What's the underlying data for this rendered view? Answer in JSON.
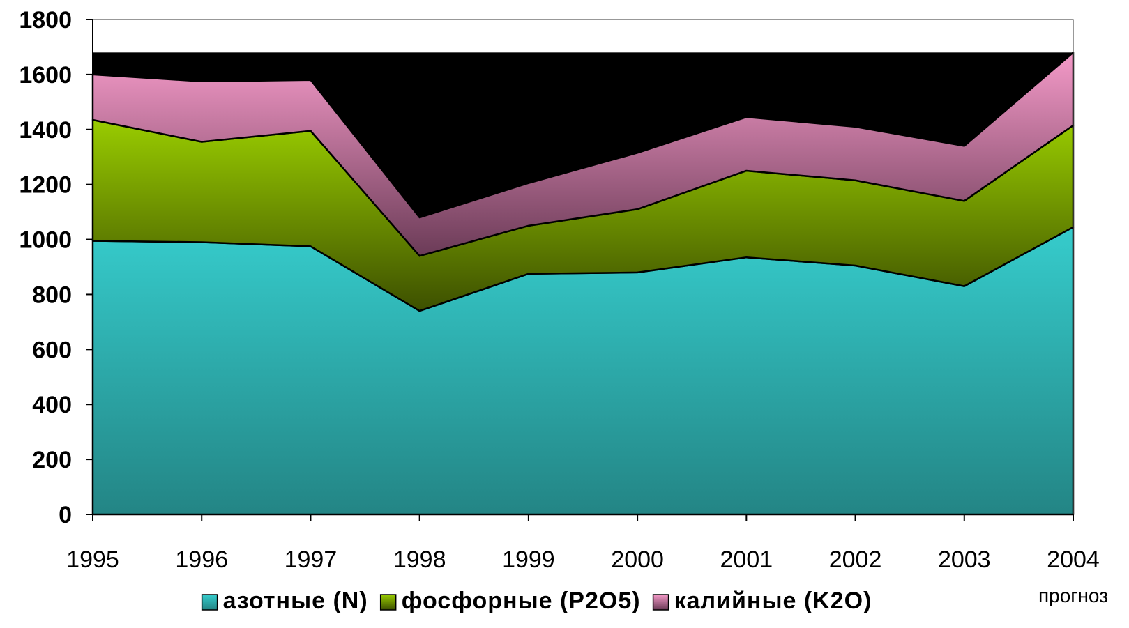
{
  "chart_data": {
    "type": "area",
    "stacked": true,
    "title": "",
    "xlabel": "",
    "ylabel": "",
    "categories": [
      "1995",
      "1996",
      "1997",
      "1998",
      "1999",
      "2000",
      "2001",
      "2002",
      "2003",
      "2004"
    ],
    "ylim": [
      0,
      1800
    ],
    "yticks": [
      "0",
      "200",
      "400",
      "600",
      "800",
      "1000",
      "1200",
      "1400",
      "1600",
      "1800"
    ],
    "series": [
      {
        "name": "азотные (N)",
        "values": [
          995,
          990,
          975,
          740,
          875,
          880,
          935,
          905,
          830,
          1045
        ],
        "color_top": "#36cccc",
        "color_bottom": "#238585"
      },
      {
        "name": "фосфорные (P2O5)",
        "values": [
          440,
          365,
          420,
          200,
          175,
          230,
          315,
          310,
          310,
          370
        ],
        "color_top": "#99cc00",
        "color_bottom": "#3d5000"
      },
      {
        "name": "калийные (K2O)",
        "values": [
          165,
          220,
          185,
          140,
          155,
          205,
          195,
          195,
          200,
          265
        ],
        "color_top": "#f49ac8",
        "color_bottom": "#6b3b57"
      }
    ],
    "background_band": {
      "color": "#000000",
      "top_value": 1680
    },
    "annotations": [
      {
        "text": "прогноз",
        "category": "2004"
      }
    ],
    "legend": {
      "position": "bottom",
      "entries": [
        "азотные (N)",
        "фосфорные (P2O5)",
        "калийные (K2O)"
      ]
    },
    "grid": false
  }
}
